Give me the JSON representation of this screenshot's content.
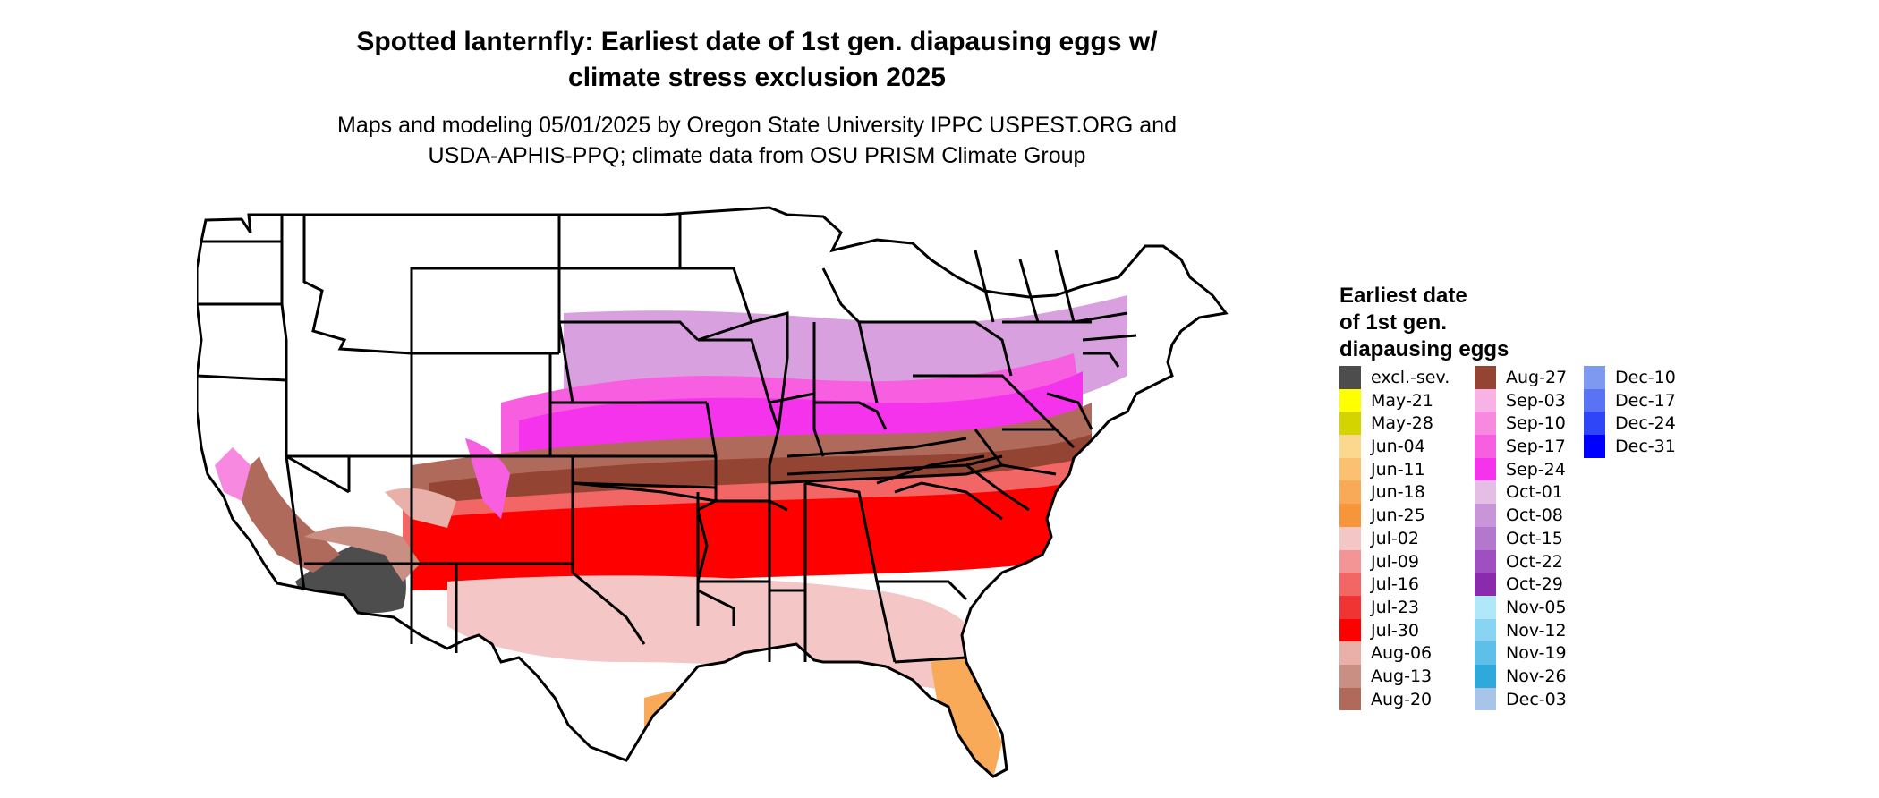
{
  "title": {
    "line1": "Spotted lanternfly: Earliest date of 1st gen. diapausing eggs w/",
    "line2": "climate stress exclusion 2025"
  },
  "subtitle": {
    "line1": "Maps and modeling 05/01/2025 by Oregon State University IPPC USPEST.ORG and",
    "line2": "USDA-APHIS-PPQ; climate data from OSU PRISM Climate Group"
  },
  "legend": {
    "title_lines": [
      "Earliest date",
      "of 1st gen.",
      "diapausing eggs"
    ],
    "items": [
      {
        "label": "excl.-sev.",
        "color": "#4d4d4d"
      },
      {
        "label": "May-21",
        "color": "#ffff00"
      },
      {
        "label": "May-28",
        "color": "#d4d400"
      },
      {
        "label": "Jun-04",
        "color": "#fcd88e"
      },
      {
        "label": "Jun-11",
        "color": "#fbc070"
      },
      {
        "label": "Jun-18",
        "color": "#f9aa58"
      },
      {
        "label": "Jun-25",
        "color": "#f7953a"
      },
      {
        "label": "Jul-02",
        "color": "#f5c6c6"
      },
      {
        "label": "Jul-09",
        "color": "#f49595"
      },
      {
        "label": "Jul-16",
        "color": "#f26666"
      },
      {
        "label": "Jul-23",
        "color": "#f03333"
      },
      {
        "label": "Jul-30",
        "color": "#ff0000"
      },
      {
        "label": "Aug-06",
        "color": "#e8b0a8"
      },
      {
        "label": "Aug-13",
        "color": "#c98f82"
      },
      {
        "label": "Aug-20",
        "color": "#b06a5c"
      },
      {
        "label": "Aug-27",
        "color": "#944432"
      },
      {
        "label": "Sep-03",
        "color": "#f7b3e6"
      },
      {
        "label": "Sep-10",
        "color": "#f78ae0"
      },
      {
        "label": "Sep-17",
        "color": "#f75ee0"
      },
      {
        "label": "Sep-24",
        "color": "#f533ec"
      },
      {
        "label": "Oct-01",
        "color": "#e4bee4"
      },
      {
        "label": "Oct-08",
        "color": "#c896d8"
      },
      {
        "label": "Oct-15",
        "color": "#b377cc"
      },
      {
        "label": "Oct-22",
        "color": "#9e50c0"
      },
      {
        "label": "Oct-29",
        "color": "#8a2aad"
      },
      {
        "label": "Nov-05",
        "color": "#b0e8fa"
      },
      {
        "label": "Nov-12",
        "color": "#88d4f2"
      },
      {
        "label": "Nov-19",
        "color": "#5ec0e8"
      },
      {
        "label": "Nov-26",
        "color": "#2fa8dc"
      },
      {
        "label": "Dec-03",
        "color": "#a8c4e8"
      },
      {
        "label": "Dec-10",
        "color": "#7e9af0"
      },
      {
        "label": "Dec-17",
        "color": "#5a72f4"
      },
      {
        "label": "Dec-24",
        "color": "#2e46f8"
      },
      {
        "label": "Dec-31",
        "color": "#0000ff"
      }
    ]
  },
  "map": {
    "region": "contiguous United States",
    "boundaries": "state outlines",
    "background_color": "#ffffff"
  }
}
